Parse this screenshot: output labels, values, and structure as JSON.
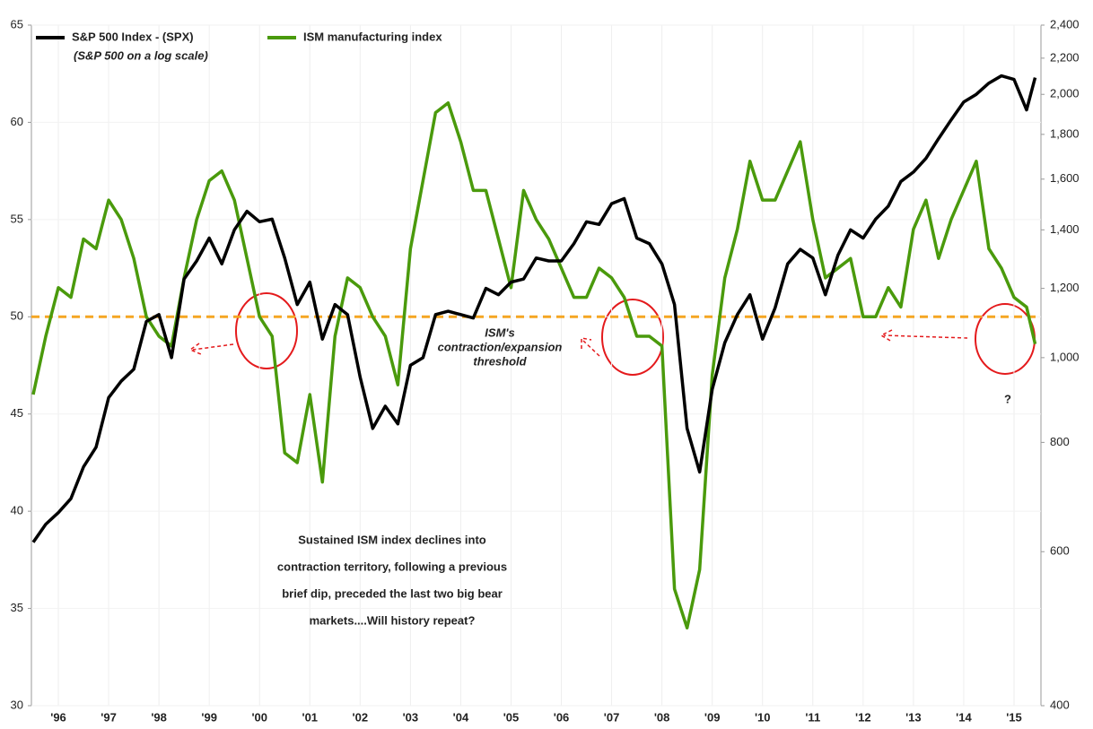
{
  "chart_data": {
    "type": "line",
    "subtitle": "(S&P 500 on a log scale)",
    "x": [
      1996,
      1996.25,
      1996.5,
      1996.75,
      1997,
      1997.25,
      1997.5,
      1997.75,
      1998,
      1998.25,
      1998.5,
      1998.75,
      1999,
      1999.25,
      1999.5,
      1999.75,
      2000,
      2000.25,
      2000.5,
      2000.75,
      2001,
      2001.25,
      2001.5,
      2001.75,
      2002,
      2002.25,
      2002.5,
      2002.75,
      2003,
      2003.25,
      2003.5,
      2003.75,
      2004,
      2004.25,
      2004.5,
      2004.75,
      2005,
      2005.25,
      2005.5,
      2005.75,
      2006,
      2006.25,
      2006.5,
      2006.75,
      2007,
      2007.25,
      2007.5,
      2007.75,
      2008,
      2008.25,
      2008.5,
      2008.75,
      2009,
      2009.25,
      2009.5,
      2009.75,
      2010,
      2010.25,
      2010.5,
      2010.75,
      2011,
      2011.25,
      2011.5,
      2011.75,
      2012,
      2012.25,
      2012.5,
      2012.75,
      2013,
      2013.25,
      2013.5,
      2013.75,
      2014,
      2014.25,
      2014.5,
      2014.75,
      2015,
      2015.25,
      2015.5,
      2015.75,
      2015.92
    ],
    "series": [
      {
        "name": "S&P 500 Index - (SPX)",
        "color": "#000000",
        "axis": "y2",
        "values": [
          615,
          645,
          665,
          690,
          750,
          790,
          900,
          940,
          970,
          1100,
          1120,
          1000,
          1230,
          1290,
          1370,
          1280,
          1400,
          1470,
          1430,
          1440,
          1300,
          1150,
          1220,
          1050,
          1150,
          1120,
          950,
          830,
          880,
          840,
          980,
          1000,
          1120,
          1130,
          1120,
          1110,
          1200,
          1180,
          1220,
          1230,
          1300,
          1290,
          1290,
          1350,
          1430,
          1420,
          1500,
          1520,
          1370,
          1350,
          1280,
          1150,
          830,
          740,
          920,
          1040,
          1120,
          1180,
          1050,
          1140,
          1280,
          1330,
          1300,
          1180,
          1310,
          1400,
          1370,
          1440,
          1490,
          1590,
          1630,
          1690,
          1780,
          1870,
          1960,
          2000,
          2060,
          2100,
          2080,
          1920,
          2090
        ]
      },
      {
        "name": "ISM manufacturing index",
        "color": "#4a9a0c",
        "values": [
          46,
          49,
          51.5,
          51,
          54,
          53.5,
          56,
          55,
          53,
          50,
          49,
          48.5,
          52,
          55,
          57,
          57.5,
          56,
          53,
          50,
          49,
          43,
          42.5,
          46,
          41.5,
          49,
          52,
          51.5,
          50,
          49,
          46.5,
          53.5,
          57,
          60.5,
          61,
          59,
          56.5,
          56.5,
          54,
          51.5,
          56.5,
          55,
          54,
          52.5,
          51,
          51,
          52.5,
          52,
          51,
          49,
          49,
          48.5,
          36,
          34,
          37,
          47,
          52,
          54.5,
          58,
          56,
          56,
          57.5,
          59,
          55,
          52,
          52.5,
          53,
          50,
          50,
          51.5,
          50.5,
          54.5,
          56,
          53,
          55,
          56.5,
          58,
          53.5,
          52.5,
          51,
          50.5,
          48.6
        ]
      }
    ],
    "xlim": [
      1996,
      2016
    ],
    "xticks": [
      {
        "value": 1996.5,
        "label": "'96"
      },
      {
        "value": 1997.5,
        "label": "'97"
      },
      {
        "value": 1998.5,
        "label": "'98"
      },
      {
        "value": 1999.5,
        "label": "'99"
      },
      {
        "value": 2000.5,
        "label": "'00"
      },
      {
        "value": 2001.5,
        "label": "'01"
      },
      {
        "value": 2002.5,
        "label": "'02"
      },
      {
        "value": 2003.5,
        "label": "'03"
      },
      {
        "value": 2004.5,
        "label": "'04"
      },
      {
        "value": 2005.5,
        "label": "'05"
      },
      {
        "value": 2006.5,
        "label": "'06"
      },
      {
        "value": 2007.5,
        "label": "'07"
      },
      {
        "value": 2008.5,
        "label": "'08"
      },
      {
        "value": 2009.5,
        "label": "'09"
      },
      {
        "value": 2010.5,
        "label": "'10"
      },
      {
        "value": 2011.5,
        "label": "'11"
      },
      {
        "value": 2012.5,
        "label": "'12"
      },
      {
        "value": 2013.5,
        "label": "'13"
      },
      {
        "value": 2014.5,
        "label": "'14"
      },
      {
        "value": 2015.5,
        "label": "'15"
      }
    ],
    "ylim": [
      30,
      65
    ],
    "yticks": [
      30,
      35,
      40,
      45,
      50,
      55,
      60,
      65
    ],
    "y2lim": [
      400,
      2400
    ],
    "y2_log": true,
    "y2ticks": [
      400,
      600,
      800,
      {
        "value": 1000,
        "label": "1,000"
      },
      {
        "value": 1200,
        "label": "1,200"
      },
      {
        "value": 1400,
        "label": "1,400"
      },
      {
        "value": 1600,
        "label": "1,600"
      },
      {
        "value": 1800,
        "label": "1,800"
      },
      {
        "value": 2000,
        "label": "2,000"
      },
      {
        "value": 2200,
        "label": "2,200"
      },
      {
        "value": 2400,
        "label": "2,400"
      }
    ],
    "grid": true,
    "threshold": {
      "value": 50,
      "color": "#f5a623",
      "label": [
        "ISM's",
        "contraction/expansion",
        "threshold"
      ]
    },
    "annotation": [
      "Sustained ISM index declines into",
      "contraction territory, following a previous",
      "brief dip, preceded the last two big bear",
      "markets....Will history repeat?"
    ],
    "question": "?"
  }
}
